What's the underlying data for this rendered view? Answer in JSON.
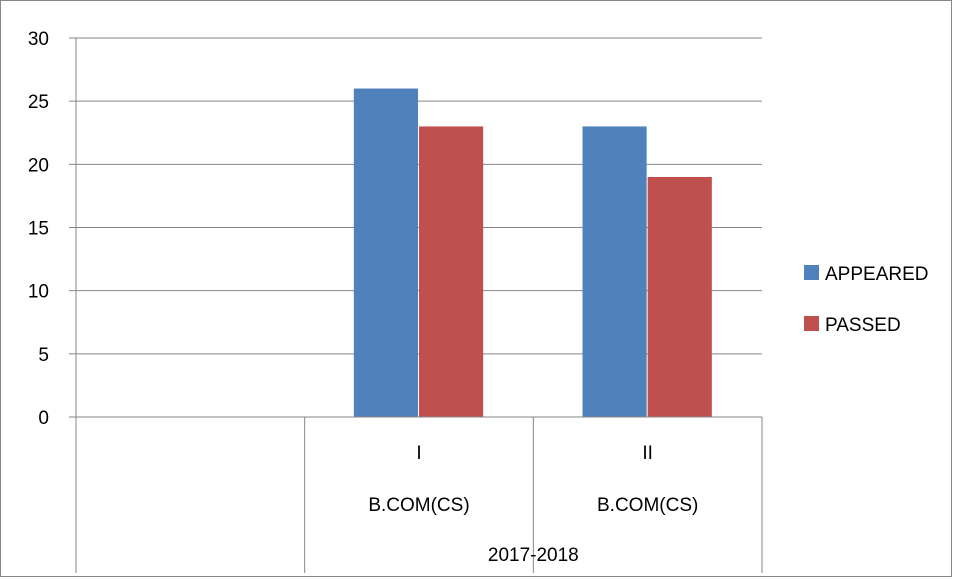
{
  "chart_data": {
    "type": "bar",
    "categories": [
      {
        "label": "",
        "group": "",
        "period": ""
      },
      {
        "label": "I",
        "group": "B.COM(CS)",
        "period": "2017-2018"
      },
      {
        "label": "II",
        "group": "B.COM(CS)",
        "period": "2017-2018"
      }
    ],
    "series": [
      {
        "name": "APPEARED",
        "color": "#4f81bd",
        "values": [
          null,
          26,
          23
        ]
      },
      {
        "name": "PASSED",
        "color": "#c0504d",
        "values": [
          null,
          23,
          19
        ]
      }
    ],
    "y_ticks": [
      0,
      5,
      10,
      15,
      20,
      25,
      30
    ],
    "ylim": [
      0,
      30
    ],
    "grid": true,
    "legend_position": "right",
    "title": "",
    "xlabel": "",
    "ylabel": ""
  }
}
